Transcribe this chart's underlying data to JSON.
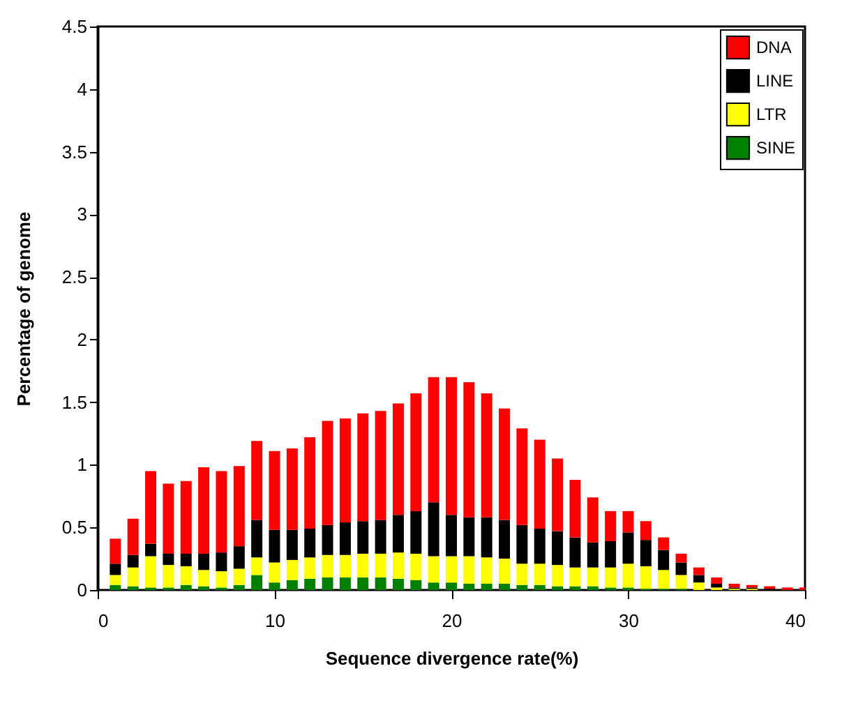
{
  "chart_data": {
    "type": "bar",
    "stacked": true,
    "xlabel": "Sequence divergence rate(%)",
    "ylabel": "Percentage of genome",
    "x": [
      1,
      2,
      3,
      4,
      5,
      6,
      7,
      8,
      9,
      10,
      11,
      12,
      13,
      14,
      15,
      16,
      17,
      18,
      19,
      20,
      21,
      22,
      23,
      24,
      25,
      26,
      27,
      28,
      29,
      30,
      31,
      32,
      33,
      34,
      35,
      36,
      37,
      38,
      39,
      40
    ],
    "series": [
      {
        "name": "SINE",
        "color": "#008000",
        "values": [
          0.04,
          0.03,
          0.02,
          0.02,
          0.04,
          0.03,
          0.02,
          0.04,
          0.12,
          0.06,
          0.08,
          0.09,
          0.1,
          0.1,
          0.1,
          0.1,
          0.09,
          0.08,
          0.06,
          0.06,
          0.05,
          0.05,
          0.05,
          0.04,
          0.04,
          0.03,
          0.03,
          0.03,
          0.02,
          0.02,
          0.01,
          0.01,
          0.01,
          0,
          0,
          0,
          0,
          0,
          0,
          0
        ]
      },
      {
        "name": "LTR",
        "color": "#ffff00",
        "values": [
          0.08,
          0.15,
          0.25,
          0.18,
          0.15,
          0.13,
          0.13,
          0.13,
          0.14,
          0.16,
          0.16,
          0.17,
          0.18,
          0.18,
          0.19,
          0.19,
          0.21,
          0.21,
          0.21,
          0.21,
          0.22,
          0.21,
          0.2,
          0.17,
          0.17,
          0.17,
          0.15,
          0.15,
          0.16,
          0.19,
          0.18,
          0.15,
          0.11,
          0.06,
          0.02,
          0.01,
          0.01,
          0,
          0,
          0
        ]
      },
      {
        "name": "LINE",
        "color": "#000000",
        "values": [
          0.09,
          0.1,
          0.1,
          0.09,
          0.1,
          0.13,
          0.15,
          0.18,
          0.3,
          0.26,
          0.24,
          0.23,
          0.24,
          0.26,
          0.26,
          0.27,
          0.3,
          0.34,
          0.43,
          0.33,
          0.31,
          0.32,
          0.31,
          0.31,
          0.28,
          0.27,
          0.24,
          0.2,
          0.21,
          0.25,
          0.21,
          0.16,
          0.1,
          0.06,
          0.03,
          0.01,
          0.01,
          0.01,
          0,
          0
        ]
      },
      {
        "name": "DNA",
        "color": "#ff0000",
        "values": [
          0.2,
          0.29,
          0.58,
          0.56,
          0.58,
          0.69,
          0.65,
          0.64,
          0.63,
          0.63,
          0.65,
          0.73,
          0.83,
          0.83,
          0.86,
          0.87,
          0.89,
          0.94,
          1.0,
          1.1,
          1.08,
          0.99,
          0.89,
          0.77,
          0.71,
          0.58,
          0.46,
          0.36,
          0.24,
          0.17,
          0.15,
          0.1,
          0.07,
          0.06,
          0.05,
          0.03,
          0.02,
          0.02,
          0.02,
          0.02
        ]
      }
    ],
    "xlim": [
      0,
      40
    ],
    "xticks": [
      0,
      10,
      20,
      30,
      40
    ],
    "ylim": [
      0,
      4.5
    ],
    "yticks": [
      0,
      0.5,
      1,
      1.5,
      2,
      2.5,
      3,
      3.5,
      4,
      4.5
    ],
    "grid": false,
    "legend": "top right"
  }
}
